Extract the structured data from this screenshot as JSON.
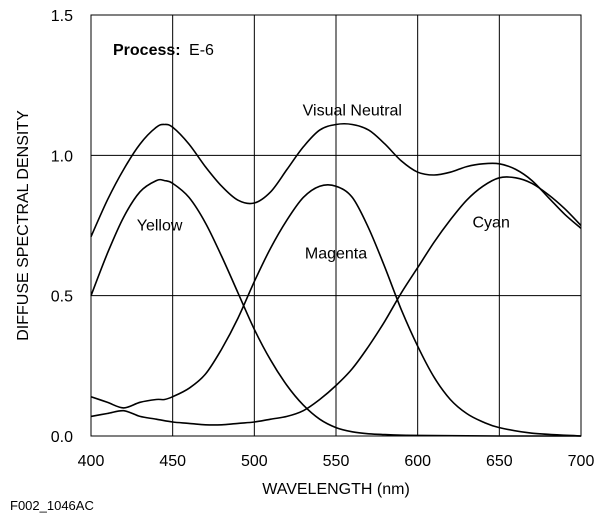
{
  "figure_code": "F002_1046AC",
  "chart_data": {
    "type": "line",
    "ylabel": "DIFFUSE SPECTRAL DENSITY",
    "xlabel": "WAVELENGTH (nm)",
    "xlim": [
      400,
      700
    ],
    "ylim": [
      0,
      1.5
    ],
    "x_ticks": [
      400,
      450,
      500,
      550,
      600,
      650,
      700
    ],
    "y_ticks": [
      0.0,
      0.5,
      1.0,
      1.5
    ],
    "y_tick_labels": [
      "0.0",
      "0.5",
      "1.0",
      "1.5"
    ],
    "vertical_grid": [
      450,
      500,
      550,
      600,
      650
    ],
    "horizontal_grid": [
      0.5,
      1.0
    ],
    "annotation": {
      "label": "Process:",
      "value": "E-6"
    },
    "series": [
      {
        "name": "Visual Neutral",
        "x": [
          400,
          410,
          420,
          430,
          440,
          445,
          450,
          460,
          470,
          480,
          490,
          500,
          510,
          520,
          530,
          540,
          550,
          560,
          570,
          580,
          590,
          600,
          610,
          620,
          630,
          640,
          650,
          660,
          670,
          680,
          690,
          700
        ],
        "y": [
          0.71,
          0.84,
          0.95,
          1.04,
          1.1,
          1.11,
          1.1,
          1.04,
          0.96,
          0.89,
          0.84,
          0.83,
          0.87,
          0.95,
          1.03,
          1.09,
          1.11,
          1.11,
          1.09,
          1.04,
          0.98,
          0.94,
          0.93,
          0.94,
          0.96,
          0.97,
          0.97,
          0.95,
          0.91,
          0.85,
          0.79,
          0.74
        ]
      },
      {
        "name": "Yellow",
        "x": [
          400,
          410,
          420,
          430,
          440,
          445,
          450,
          460,
          470,
          480,
          490,
          500,
          510,
          520,
          530,
          540,
          550,
          560,
          570,
          580,
          590,
          600,
          620,
          650,
          700
        ],
        "y": [
          0.5,
          0.65,
          0.78,
          0.87,
          0.91,
          0.91,
          0.9,
          0.85,
          0.76,
          0.64,
          0.51,
          0.38,
          0.27,
          0.18,
          0.11,
          0.06,
          0.03,
          0.015,
          0.008,
          0.005,
          0.003,
          0.002,
          0.001,
          0.0,
          0.0
        ]
      },
      {
        "name": "Magenta",
        "x": [
          400,
          410,
          420,
          430,
          440,
          445,
          450,
          460,
          470,
          480,
          490,
          500,
          510,
          520,
          530,
          540,
          550,
          560,
          570,
          580,
          590,
          600,
          610,
          620,
          630,
          640,
          650,
          670,
          700
        ],
        "y": [
          0.14,
          0.12,
          0.1,
          0.12,
          0.13,
          0.13,
          0.14,
          0.17,
          0.22,
          0.31,
          0.42,
          0.55,
          0.67,
          0.77,
          0.85,
          0.89,
          0.89,
          0.85,
          0.74,
          0.6,
          0.45,
          0.32,
          0.21,
          0.13,
          0.08,
          0.05,
          0.03,
          0.01,
          0.0
        ]
      },
      {
        "name": "Cyan",
        "x": [
          400,
          410,
          420,
          430,
          440,
          450,
          460,
          470,
          480,
          490,
          500,
          510,
          520,
          530,
          540,
          550,
          560,
          570,
          580,
          590,
          600,
          610,
          620,
          630,
          640,
          650,
          660,
          670,
          680,
          690,
          700
        ],
        "y": [
          0.07,
          0.08,
          0.09,
          0.07,
          0.06,
          0.05,
          0.045,
          0.04,
          0.04,
          0.045,
          0.05,
          0.06,
          0.07,
          0.09,
          0.13,
          0.18,
          0.24,
          0.32,
          0.41,
          0.51,
          0.6,
          0.69,
          0.77,
          0.84,
          0.89,
          0.92,
          0.92,
          0.9,
          0.86,
          0.81,
          0.75
        ]
      }
    ],
    "curve_labels": [
      {
        "text": "Visual Neutral",
        "x": 560,
        "y": 1.16
      },
      {
        "text": "Yellow",
        "x": 442,
        "y": 0.75
      },
      {
        "text": "Magenta",
        "x": 550,
        "y": 0.65
      },
      {
        "text": "Cyan",
        "x": 645,
        "y": 0.76
      }
    ]
  }
}
